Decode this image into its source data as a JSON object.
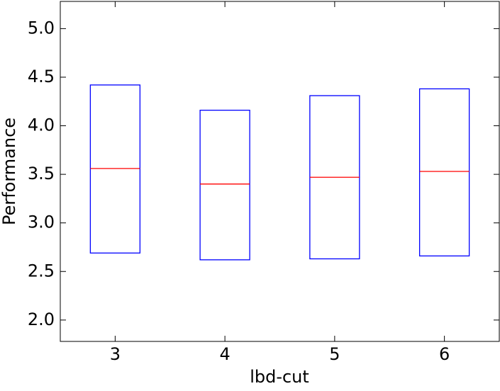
{
  "chart_data": {
    "type": "box",
    "x_label": "lbd-cut",
    "y_label": "Performance",
    "categories": [
      "3",
      "4",
      "5",
      "6"
    ],
    "q1": [
      2.69,
      2.62,
      2.63,
      2.66
    ],
    "median": [
      3.56,
      3.4,
      3.47,
      3.53
    ],
    "q3": [
      4.42,
      4.16,
      4.31,
      4.38
    ],
    "box_color": "#0000ff",
    "median_color": "#ff0000",
    "ylim": [
      1.78,
      5.28
    ],
    "yticks": [
      {
        "value": 2,
        "label": "2.0"
      },
      {
        "value": 2.5,
        "label": "2.5"
      },
      {
        "value": 3,
        "label": "3.0"
      },
      {
        "value": 3.5,
        "label": "3.5"
      },
      {
        "value": 4,
        "label": "4.0"
      },
      {
        "value": 4.5,
        "label": "4.5"
      },
      {
        "value": 5,
        "label": "5.0"
      }
    ]
  }
}
